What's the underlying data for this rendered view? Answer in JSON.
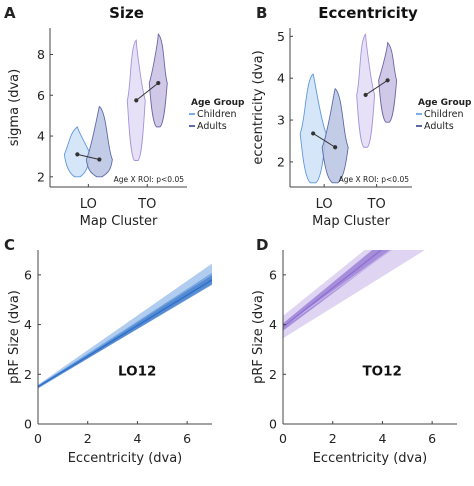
{
  "chart_data": [
    {
      "panel": "A",
      "type": "violin",
      "title": "Size",
      "xlabel": "Map Cluster",
      "ylabel": "sigma (dva)",
      "categories": [
        "LO",
        "TO"
      ],
      "ylim": [
        1.5,
        9.3
      ],
      "yticks": [
        2,
        4,
        6,
        8
      ],
      "legend_title": "Age Group",
      "legend": [
        "Children",
        "Adults"
      ],
      "legend_position": "right",
      "annotation": "Age X ROI: p<0.05",
      "series": [
        {
          "name": "Children",
          "color": "#7aaee6",
          "violins": [
            {
              "category": "LO",
              "min": 2.0,
              "max": 4.45,
              "mean": 3.1
            },
            {
              "category": "TO",
              "min": 2.8,
              "max": 8.7,
              "mean": 5.75
            }
          ]
        },
        {
          "name": "Adults",
          "color": "#8a98c8",
          "violins": [
            {
              "category": "LO",
              "min": 2.0,
              "max": 5.45,
              "mean": 2.85
            },
            {
              "category": "TO",
              "min": 4.45,
              "max": 9.0,
              "mean": 6.6
            }
          ]
        }
      ]
    },
    {
      "panel": "B",
      "type": "violin",
      "title": "Eccentricity",
      "xlabel": "Map Cluster",
      "ylabel": "eccentricity (dva)",
      "categories": [
        "LO",
        "TO"
      ],
      "ylim": [
        1.4,
        5.2
      ],
      "yticks": [
        2,
        3,
        4,
        5
      ],
      "legend_title": "Age Group",
      "legend": [
        "Children",
        "Adults"
      ],
      "legend_position": "right",
      "annotation": "Age X ROI: p<0.05",
      "series": [
        {
          "name": "Children",
          "color": "#7aaee6",
          "violins": [
            {
              "category": "LO",
              "min": 1.5,
              "max": 4.1,
              "mean": 2.68
            },
            {
              "category": "TO",
              "min": 2.35,
              "max": 5.05,
              "mean": 3.6
            }
          ]
        },
        {
          "name": "Adults",
          "color": "#8a98c8",
          "violins": [
            {
              "category": "LO",
              "min": 1.5,
              "max": 3.75,
              "mean": 2.35
            },
            {
              "category": "TO",
              "min": 2.95,
              "max": 4.85,
              "mean": 3.95
            }
          ]
        }
      ]
    },
    {
      "panel": "C",
      "type": "line",
      "title": "",
      "label": "LO12",
      "xlabel": "Eccentricity (dva)",
      "ylabel": "pRF Size (dva)",
      "xlim": [
        0,
        7
      ],
      "ylim": [
        0,
        7
      ],
      "xticks": [
        0,
        2,
        4,
        6
      ],
      "yticks": [
        0,
        2,
        4,
        6
      ],
      "series": [
        {
          "name": "Children",
          "color": "#6fa2e0",
          "x": [
            0,
            7
          ],
          "y": [
            1.5,
            6.05
          ],
          "band_lo": [
            1.42,
            5.65
          ],
          "band_hi": [
            1.58,
            6.45
          ]
        },
        {
          "name": "Adults",
          "color": "#2f6fc8",
          "x": [
            0,
            7
          ],
          "y": [
            1.5,
            5.8
          ],
          "band_lo": [
            1.45,
            5.6
          ],
          "band_hi": [
            1.55,
            6.0
          ]
        }
      ]
    },
    {
      "panel": "D",
      "type": "line",
      "title": "",
      "label": "TO12",
      "xlabel": "Eccentricity (dva)",
      "ylabel": "pRF Size (dva)",
      "xlim": [
        0,
        7
      ],
      "ylim": [
        0,
        7
      ],
      "xticks": [
        0,
        2,
        4,
        6
      ],
      "yticks": [
        0,
        2,
        4,
        6
      ],
      "series": [
        {
          "name": "Children",
          "color": "#c4b2ea",
          "x": [
            0,
            7
          ],
          "y": [
            3.9,
            8.9
          ],
          "band_lo": [
            3.45,
            7.8
          ],
          "band_hi": [
            4.35,
            10.0
          ]
        },
        {
          "name": "Adults",
          "color": "#8f6fd0",
          "x": [
            0,
            7
          ],
          "y": [
            3.9,
            9.4
          ],
          "band_lo": [
            3.75,
            9.0
          ],
          "band_hi": [
            4.05,
            9.8
          ]
        }
      ]
    }
  ]
}
